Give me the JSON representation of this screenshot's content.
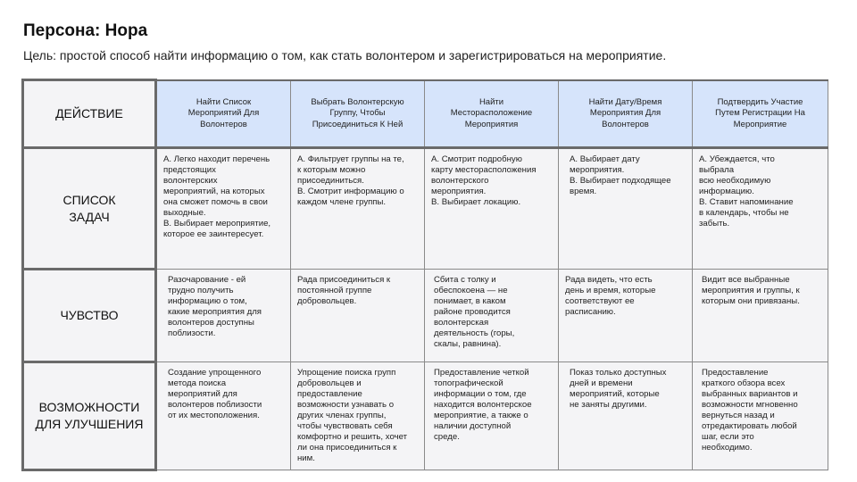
{
  "title": "Персона: Нора",
  "subtitle": "Цель: простой способ найти информацию о том, как стать волонтером и зарегистрироваться на мероприятие.",
  "colors": {
    "header_bg": "#d6e4fb",
    "cell_bg": "#f4f4f6",
    "border": "#6a6a6a"
  },
  "rows": {
    "action": {
      "label": "ДЕЙСТВИЕ",
      "cells": [
        "Найти Список\nМероприятий Для\nВолонтеров",
        "Выбрать Волонтерскую\nГруппу, Чтобы\nПрисоединиться К Ней",
        "Найти\nМесторасположение\nМероприятия",
        "Найти Дату/Время\nМероприятия Для\nВолонтеров",
        "Подтвердить Участие\nПутем Регистрации На\nМероприятие"
      ]
    },
    "tasks": {
      "label": "СПИСОК\nЗАДАЧ",
      "cells": [
        "А. Легко находит перечень\nпредстоящих\nволонтерских\nмероприятий, на которых\nона сможет помочь в свои\nвыходные.\nВ. Выбирает мероприятие,\nкоторое ее заинтересует.",
        "А. Фильтрует группы на те,\nк которым можно\nприсоединиться.\nВ. Смотрит информацию о\nкаждом члене группы.",
        "А. Смотрит подробную\nкарту месторасположения\nволонтерского\nмероприятия.\nВ. Выбирает локацию.",
        "А. Выбирает дату\nмероприятия.\nВ. Выбирает подходящее\nвремя.",
        "А. Убеждается, что\nвыбрала\nвсю необходимую\nинформацию.\nВ. Ставит напоминание\nв календарь, чтобы не\nзабыть."
      ]
    },
    "feeling": {
      "label": "ЧУВСТВО",
      "cells": [
        "Разочарование - ей\nтрудно получить\nинформацию о том,\nкакие мероприятия для\nволонтеров доступны\nпоблизости.",
        "Рада присоединиться к\nпостоянной группе\nдобровольцев.",
        "Сбита с толку и\nобеспокоена — не\nпонимает, в каком\nрайоне проводится\nволонтерская\nдеятельность (горы,\nскалы, равнина).",
        "Рада видеть, что есть\nдень и время, которые\nсоответствуют ее\nрасписанию.",
        "Видит все выбранные\nмероприятия и группы, к\nкоторым они привязаны."
      ]
    },
    "opportunities": {
      "label": "ВОЗМОЖНОСТИ\nДЛЯ УЛУЧШЕНИЯ",
      "cells": [
        "Создание упрощенного\nметода поиска\nмероприятий для\nволонтеров поблизости\nот их местоположения.",
        "Упрощение поиска групп\nдобровольцев и\nпредоставление\nвозможности узнавать о\nдругих членах группы,\nчтобы чувствовать себя\nкомфортно и решить, хочет\nли она присоединиться к\nним.",
        "Предоставление четкой\nтопографической\nинформации о том, где\nнаходится волонтерское\nмероприятие, а также о\nналичии доступной\nсреде.",
        "Показ только доступных\nдней и времени\nмероприятий, которые\nне заняты другими.",
        "Предоставление\nкраткого обзора всех\nвыбранных вариантов и\nвозможности мгновенно\nвернуться назад и\nотредактировать любой\nшаг, если это\nнеобходимо."
      ]
    }
  }
}
